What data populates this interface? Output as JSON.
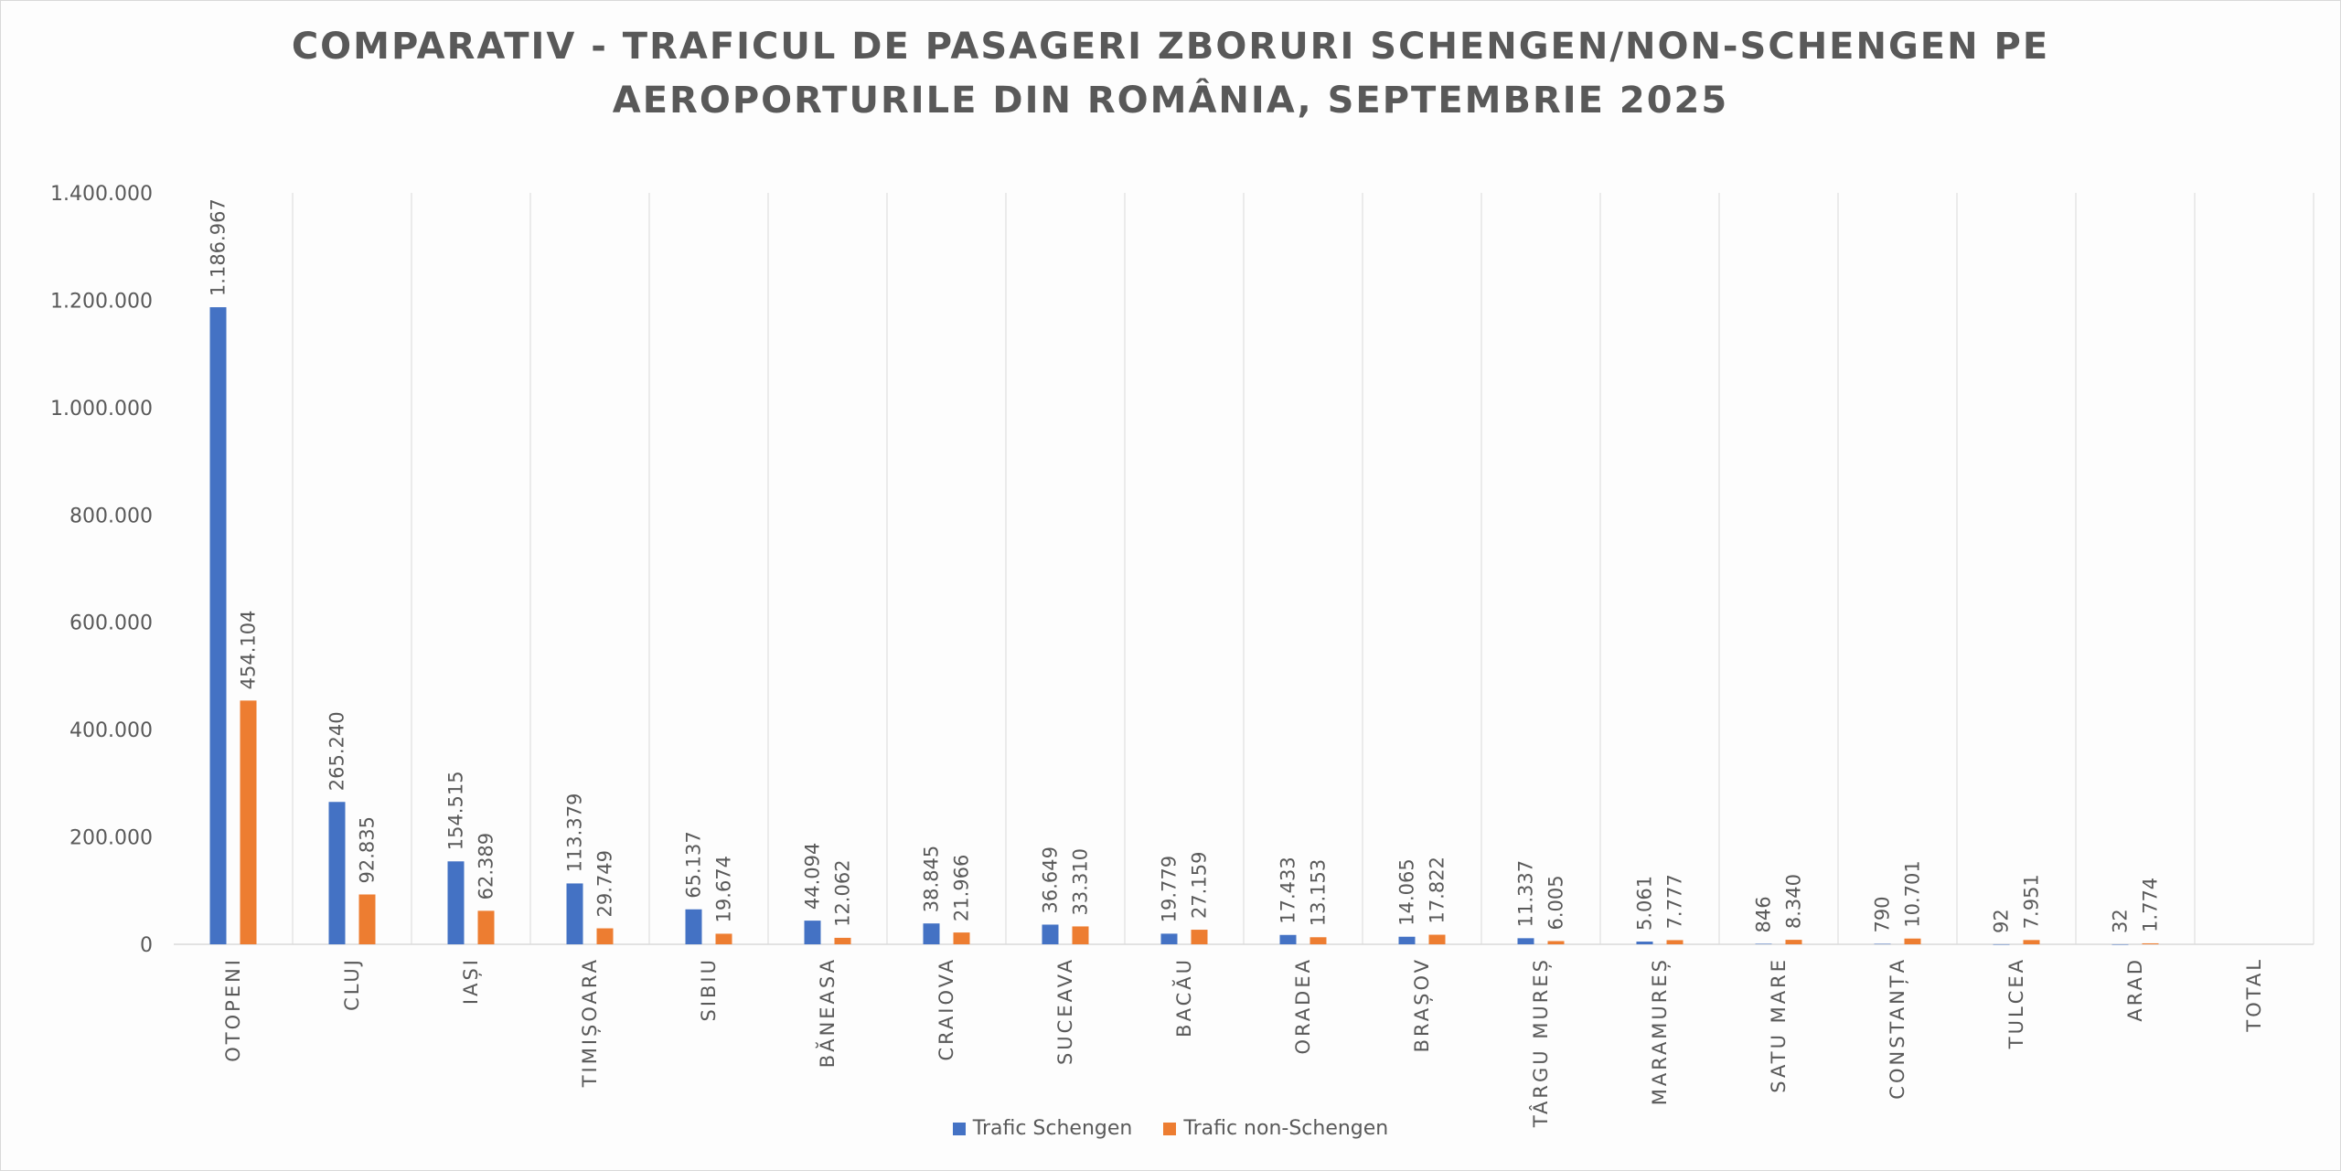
{
  "chart_data": {
    "type": "bar",
    "title_lines": [
      "COMPARATIV - TRAFICUL DE PASAGERI ZBORURI SCHENGEN/NON-SCHENGEN PE",
      "AEROPORTURILE DIN ROMÂNIA, SEPTEMBRIE 2025"
    ],
    "xlabel": "",
    "ylabel": "",
    "ylim": [
      0,
      1400000
    ],
    "y_ticks": [
      "0",
      "200.000",
      "400.000",
      "600.000",
      "800.000",
      "1.000.000",
      "1.200.000",
      "1.400.000"
    ],
    "categories": [
      "OTOPENI",
      "CLUJ",
      "IAȘI",
      "TIMIȘOARA",
      "SIBIU",
      "BĂNEASA",
      "CRAIOVA",
      "SUCEAVA",
      "BACĂU",
      "ORADEA",
      "BRAȘOV",
      "TÂRGU MUREȘ",
      "MARAMUREȘ",
      "SATU MARE",
      "CONSTANȚA",
      "TULCEA",
      "ARAD",
      "TOTAL"
    ],
    "series": [
      {
        "name": "Trafic Schengen",
        "color": "#4472c4",
        "values": [
          1186967,
          265240,
          154515,
          113379,
          65137,
          44094,
          38845,
          36649,
          19779,
          17433,
          14065,
          11337,
          5061,
          846,
          790,
          92,
          32,
          null
        ],
        "labels": [
          "1.186.967",
          "265.240",
          "154.515",
          "113.379",
          "65.137",
          "44.094",
          "38.845",
          "36.649",
          "19.779",
          "17.433",
          "14.065",
          "11.337",
          "5.061",
          "846",
          "790",
          "92",
          "32",
          ""
        ]
      },
      {
        "name": "Trafic non-Schengen",
        "color": "#ed7d31",
        "values": [
          454104,
          92835,
          62389,
          29749,
          19674,
          12062,
          21966,
          33310,
          27159,
          13153,
          17822,
          6005,
          7777,
          8340,
          10701,
          7951,
          1774,
          null
        ],
        "labels": [
          "454.104",
          "92.835",
          "62.389",
          "29.749",
          "19.674",
          "12.062",
          "21.966",
          "33.310",
          "27.159",
          "13.153",
          "17.822",
          "6.005",
          "7.777",
          "8.340",
          "10.701",
          "7.951",
          "1.774",
          ""
        ]
      }
    ],
    "grid": "vertical category separators",
    "legend_position": "bottom"
  }
}
